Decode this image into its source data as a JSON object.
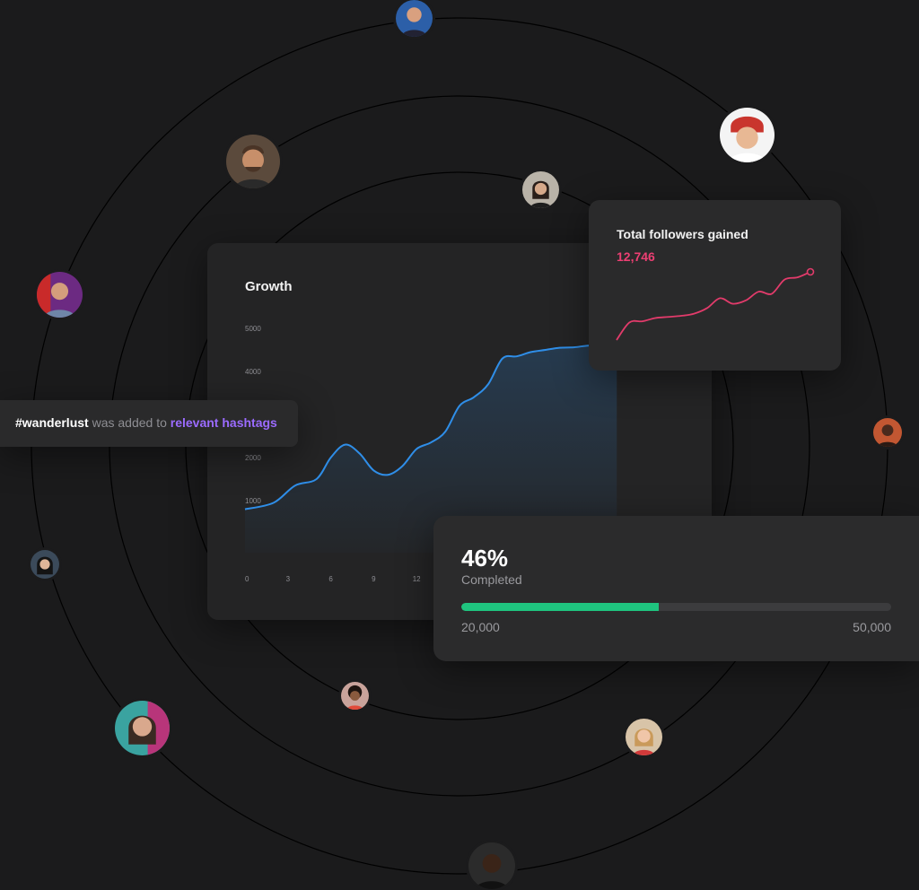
{
  "growth": {
    "title": "Growth",
    "chart_data": {
      "type": "area",
      "title": "Growth",
      "y_ticks": [
        "5000",
        "4000",
        "2000",
        "1000"
      ],
      "x_ticks": [
        "0",
        "3",
        "6",
        "9",
        "12"
      ],
      "ylim": [
        0,
        5000
      ],
      "xlim": [
        0,
        30
      ],
      "x": [
        0,
        2,
        3.5,
        5,
        6,
        7,
        8,
        9,
        10,
        11,
        12,
        13,
        14,
        15,
        16,
        17,
        18,
        19,
        20,
        21,
        22,
        23,
        24,
        25,
        26
      ],
      "values": [
        800,
        950,
        1350,
        1500,
        2000,
        2300,
        2100,
        1700,
        1600,
        1800,
        2200,
        2350,
        2600,
        3200,
        3400,
        3700,
        4300,
        4350,
        4450,
        4500,
        4550,
        4560,
        4600,
        4600,
        4650
      ],
      "line_color": "#2f8ee8"
    }
  },
  "followers": {
    "title": "Total followers gained",
    "value": "12,746",
    "chart_data": {
      "type": "line",
      "x": [
        0,
        1,
        2,
        3,
        4,
        5,
        6,
        7,
        8,
        9,
        10,
        11,
        12,
        13,
        14,
        15
      ],
      "values": [
        0,
        16,
        17,
        20,
        21,
        22,
        24,
        29,
        38,
        33,
        36,
        44,
        42,
        55,
        57,
        62
      ],
      "line_color": "#e23b6b"
    }
  },
  "hashtag": {
    "tag": "#wanderlust",
    "middle": " was added to ",
    "link": "relevant hashtags"
  },
  "progress": {
    "percent_text": "46%",
    "label": "Completed",
    "fraction": 0.46,
    "min_label": "20,000",
    "max_label": "50,000",
    "fill_color": "#1fc47f"
  },
  "avatars": [
    {
      "name": "avatar-person-1",
      "bg": "#2c5fa8"
    },
    {
      "name": "avatar-person-2",
      "bg": "#c9352d"
    },
    {
      "name": "avatar-person-3",
      "bg": "#5b4a3c"
    },
    {
      "name": "avatar-person-4",
      "bg": "#b9b3a8"
    },
    {
      "name": "avatar-person-5",
      "bg": "#6c2a82"
    },
    {
      "name": "avatar-person-6",
      "bg": "#c25732"
    },
    {
      "name": "avatar-person-7",
      "bg": "#3b4a5a"
    },
    {
      "name": "avatar-person-8",
      "bg": "#c9a39b"
    },
    {
      "name": "avatar-person-9",
      "bg": "#3aa3a0"
    },
    {
      "name": "avatar-person-10",
      "bg": "#d8c4a8"
    },
    {
      "name": "avatar-person-11",
      "bg": "#2b2b2b"
    }
  ]
}
